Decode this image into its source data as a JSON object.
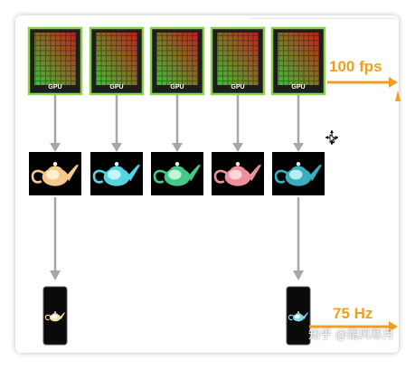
{
  "gpu_units": [
    {
      "label": "GPU"
    },
    {
      "label": "GPU"
    },
    {
      "label": "GPU"
    },
    {
      "label": "GPU"
    },
    {
      "label": "GPU"
    }
  ],
  "teapot_frames": [
    {
      "color": "#f5c98a",
      "highlight": "#fff6dc"
    },
    {
      "color": "#54d6e0",
      "highlight": "#d8fbff"
    },
    {
      "color": "#45c98a",
      "highlight": "#d6ffe8"
    },
    {
      "color": "#ef8f9a",
      "highlight": "#ffe3e8"
    },
    {
      "color": "#3aaebf",
      "highlight": "#d2f6ff"
    }
  ],
  "displays": [
    {
      "teapot_color": "#f2e0b0"
    },
    {
      "teapot_color": "#86d7e6"
    }
  ],
  "labels": {
    "render_rate": "100 fps",
    "display_rate": "75 Hz",
    "watermark": "知乎 @霜风寒月"
  },
  "colors": {
    "accent": "#f0a020",
    "connector": "#a7a7a7",
    "gpu_border": "#8bd24a"
  }
}
